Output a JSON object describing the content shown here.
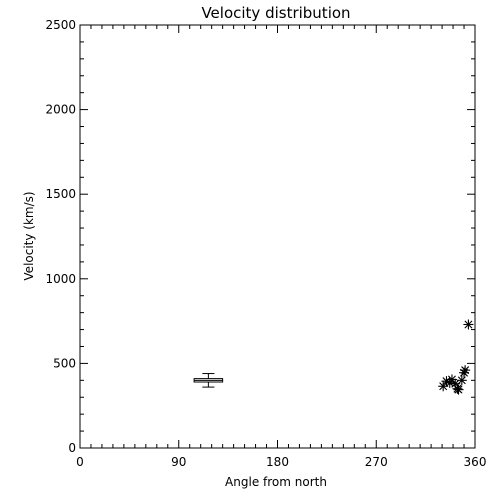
{
  "chart_data": {
    "type": "scatter",
    "title": "Velocity distribution",
    "xlabel": "Angle from north",
    "ylabel": "Velocity (km/s)",
    "xlim": [
      0,
      360
    ],
    "ylim": [
      0,
      2500
    ],
    "xticks": [
      0,
      90,
      180,
      270,
      360
    ],
    "yticks": [
      0,
      500,
      1000,
      1500,
      2000,
      2500
    ],
    "grid": false,
    "series": [
      {
        "marker": "asterisk",
        "points": [
          {
            "x": 331,
            "y": 365
          },
          {
            "x": 334,
            "y": 395
          },
          {
            "x": 337,
            "y": 385
          },
          {
            "x": 339,
            "y": 405
          },
          {
            "x": 342,
            "y": 380
          },
          {
            "x": 344,
            "y": 350
          },
          {
            "x": 345,
            "y": 345
          },
          {
            "x": 348,
            "y": 400
          },
          {
            "x": 350,
            "y": 445
          },
          {
            "x": 351,
            "y": 460
          },
          {
            "x": 354,
            "y": 730
          }
        ]
      },
      {
        "type": "box",
        "x_min": 104,
        "x_max": 130,
        "x_center": 117,
        "y_min": 360,
        "y_q1": 390,
        "y_median": 400,
        "y_q3": 410,
        "y_max": 440
      }
    ]
  }
}
